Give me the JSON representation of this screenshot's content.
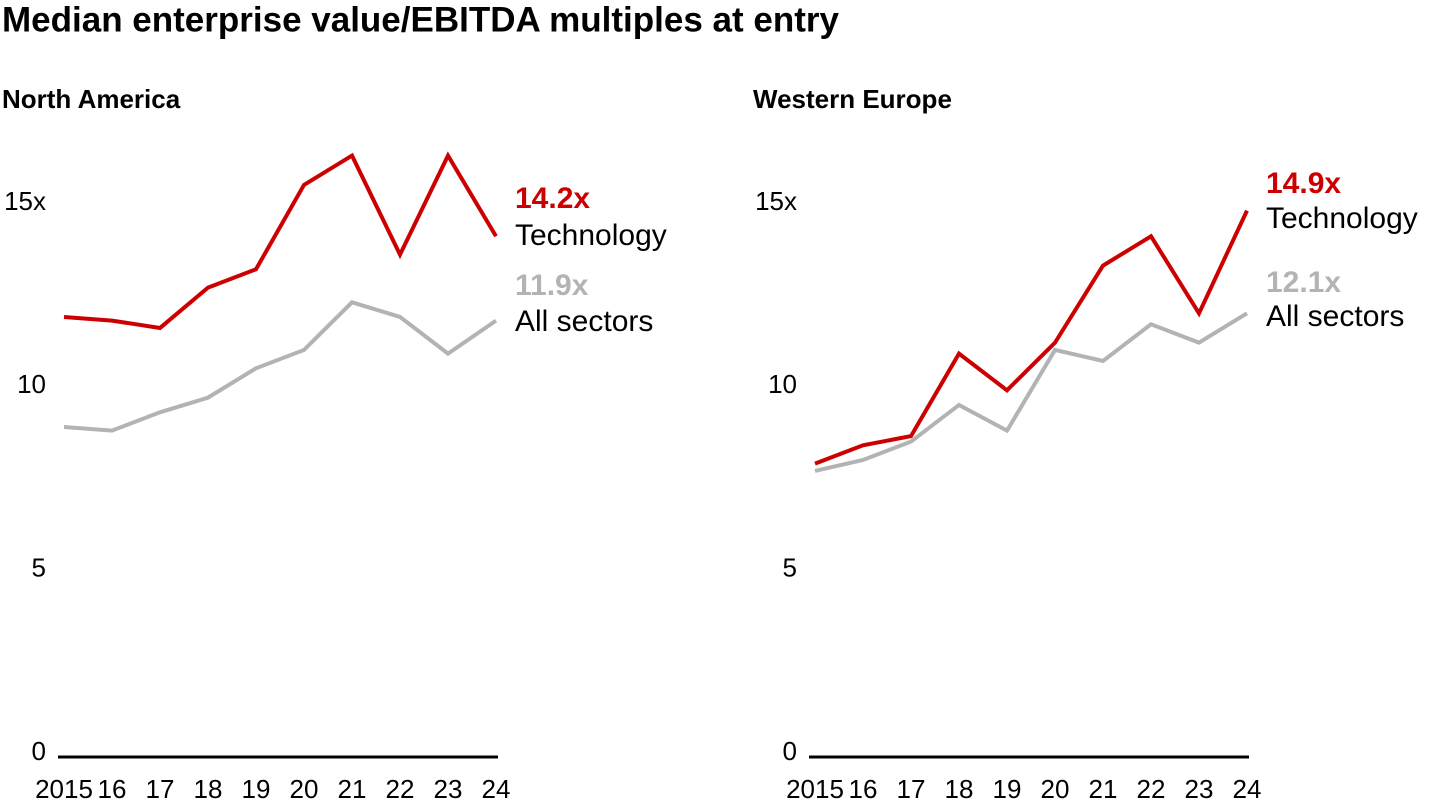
{
  "title": "Median enterprise value/EBITDA multiples at entry",
  "chart_data": [
    {
      "type": "line",
      "title": "North America",
      "categories": [
        "2015",
        "16",
        "17",
        "18",
        "19",
        "20",
        "21",
        "22",
        "23",
        "24"
      ],
      "ylim": [
        0,
        17
      ],
      "yticks": [
        0,
        5,
        10,
        {
          "value": 15,
          "label": "15x"
        }
      ],
      "series": [
        {
          "name": "Technology",
          "color": "#cc0000",
          "values": [
            12.0,
            11.9,
            11.7,
            12.8,
            13.3,
            15.6,
            16.4,
            13.7,
            16.4,
            14.2
          ],
          "value_labels": [
            null,
            null,
            null,
            null,
            null,
            null,
            null,
            null,
            null,
            "14.2x"
          ]
        },
        {
          "name": "All sectors",
          "color": "#b3b3b3",
          "values": [
            9.0,
            8.9,
            9.4,
            9.8,
            10.6,
            11.1,
            12.4,
            12.0,
            11.0,
            11.9
          ],
          "value_labels": [
            null,
            null,
            null,
            null,
            null,
            null,
            null,
            null,
            null,
            "11.9x"
          ]
        }
      ]
    },
    {
      "type": "line",
      "title": "Western Europe",
      "categories": [
        "2015",
        "16",
        "17",
        "18",
        "19",
        "20",
        "21",
        "22",
        "23",
        "24"
      ],
      "ylim": [
        0,
        17
      ],
      "yticks": [
        0,
        5,
        10,
        {
          "value": 15,
          "label": "15x"
        }
      ],
      "series": [
        {
          "name": "Technology",
          "color": "#cc0000",
          "values": [
            8.0,
            8.5,
            8.75,
            11.0,
            10.0,
            11.3,
            13.4,
            14.2,
            12.1,
            14.9
          ],
          "value_labels": [
            null,
            null,
            null,
            null,
            null,
            null,
            null,
            null,
            null,
            "14.9x"
          ]
        },
        {
          "name": "All sectors",
          "color": "#b3b3b3",
          "values": [
            7.8,
            8.1,
            8.6,
            9.6,
            8.9,
            11.1,
            10.8,
            11.8,
            11.3,
            12.1
          ],
          "value_labels": [
            null,
            null,
            null,
            null,
            null,
            null,
            null,
            null,
            null,
            "12.1x"
          ]
        }
      ]
    }
  ]
}
